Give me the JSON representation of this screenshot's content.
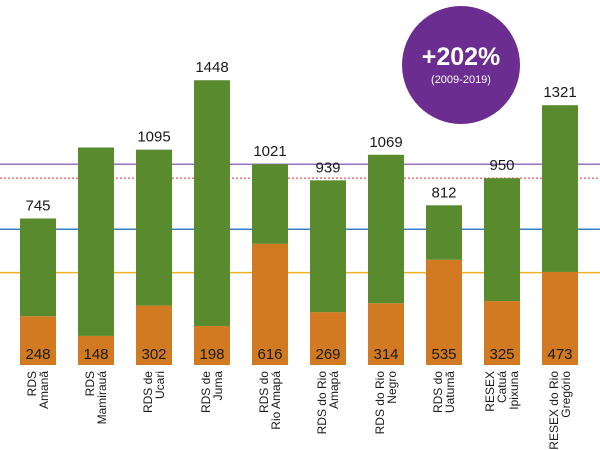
{
  "chart_data": {
    "type": "bar",
    "stacked": true,
    "title": "",
    "xlabel": "",
    "ylabel": "",
    "categories": [
      [
        "RDS",
        "Amanã"
      ],
      [
        "RDS",
        "Mamirauá"
      ],
      [
        "RDS de",
        "Ucari"
      ],
      [
        "RDS de",
        "Juma"
      ],
      [
        "RDS do",
        "Rio Amapá"
      ],
      [
        "RDS do Rio",
        "Amapá"
      ],
      [
        "RDS do Rio",
        "Negro"
      ],
      [
        "RDS do",
        "Uatumã"
      ],
      [
        "RESEX",
        "Catuá",
        "Ipixuna"
      ],
      [
        "RESEX do Rio",
        "Gregório"
      ]
    ],
    "series": [
      {
        "values": [
          248,
          148,
          302,
          198,
          616,
          269,
          314,
          535,
          325,
          473
        ],
        "color": "#d17a22"
      },
      {
        "values": [
          497,
          958,
          793,
          1250,
          405,
          670,
          755,
          277,
          625,
          848
        ],
        "color": "#5a8a2e"
      }
    ],
    "base_labels": [
      "248",
      "148",
      "302",
      "198",
      "616",
      "269",
      "314",
      "535",
      "325",
      "473"
    ],
    "total_labels": [
      "745",
      "",
      "1095",
      "1448",
      "1021",
      "939",
      "1069",
      "812",
      "950",
      "1321"
    ],
    "reference_lines": [
      {
        "value": 1021,
        "color": "#9b6fc0",
        "style": "solid"
      },
      {
        "value": 950,
        "color": "#cc3333",
        "style": "dotted"
      },
      {
        "value": 690,
        "color": "#3a7cc4",
        "style": "solid"
      },
      {
        "value": 470,
        "color": "#f0b020",
        "style": "solid"
      }
    ],
    "ylim": [
      0,
      1500
    ],
    "grid": false
  },
  "badge": {
    "value": "+202%",
    "period": "(2009-2019)",
    "color": "#6b2d8f"
  }
}
